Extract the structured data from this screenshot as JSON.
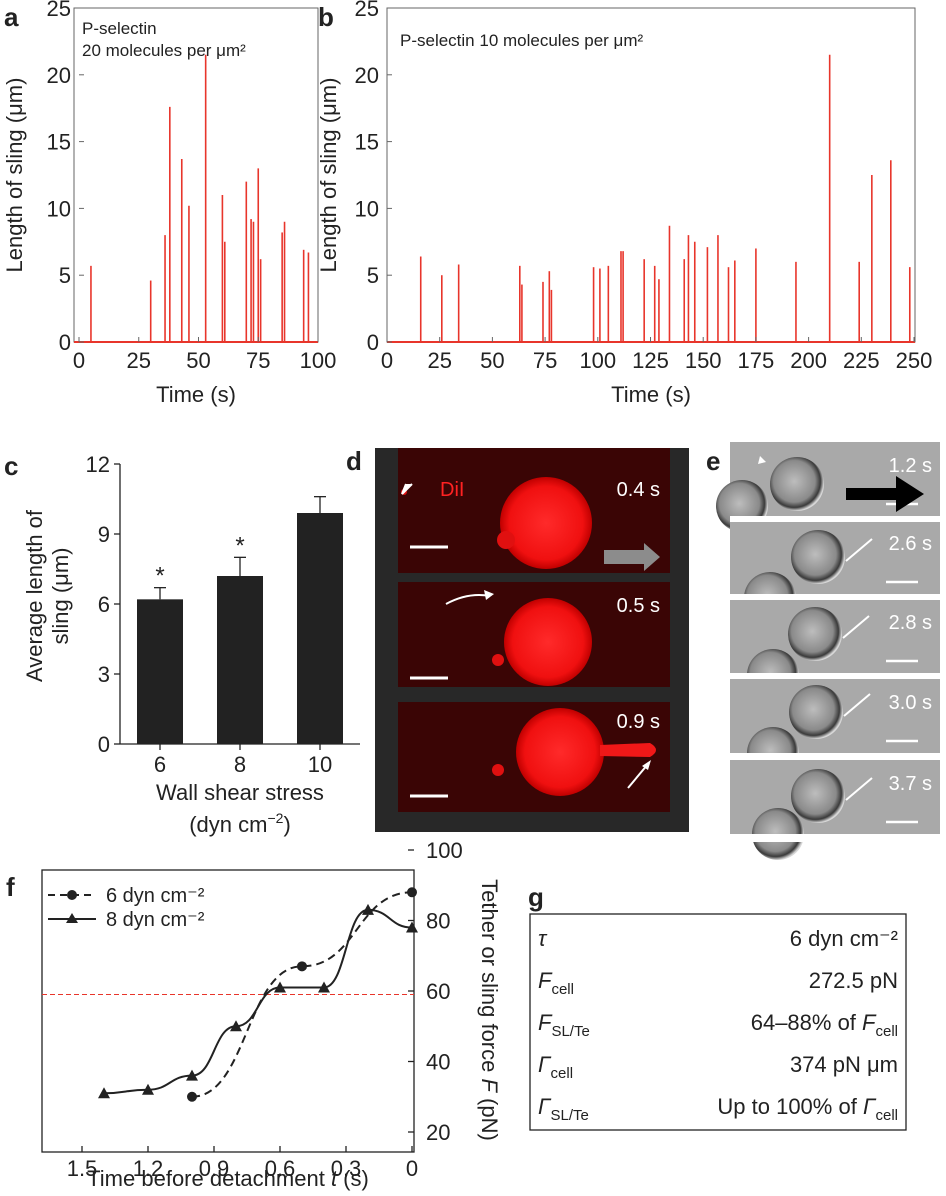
{
  "panels": {
    "a": {
      "letter": "a",
      "annotation_line1": "P-selectin",
      "annotation_line2": "20 molecules per μm²"
    },
    "b": {
      "letter": "b",
      "annotation": "P-selectin 10 molecules per μm²"
    },
    "c": {
      "letter": "c"
    },
    "d": {
      "letter": "d",
      "label": "DiI",
      "times": [
        "0.4 s",
        "0.5 s",
        "0.9 s"
      ]
    },
    "e": {
      "letter": "e",
      "times": [
        "1.2 s",
        "2.6 s",
        "2.8 s",
        "3.0 s",
        "3.7 s"
      ]
    },
    "f": {
      "letter": "f"
    },
    "g": {
      "letter": "g"
    }
  },
  "chart_data": [
    {
      "id": "a",
      "type": "bar",
      "xlabel": "Time (s)",
      "ylabel": "Length of sling (μm)",
      "xlim": [
        0,
        100
      ],
      "ylim": [
        0,
        25
      ],
      "xticks": [
        0,
        25,
        50,
        75,
        100
      ],
      "yticks": [
        0,
        5,
        10,
        15,
        20,
        25
      ],
      "color": "#e8352b",
      "x": [
        5,
        30,
        36,
        38,
        43,
        46,
        53,
        60,
        61,
        70,
        72,
        73,
        75,
        76,
        85,
        86,
        94,
        96
      ],
      "values": [
        5.7,
        4.6,
        8.0,
        17.6,
        13.7,
        10.2,
        21.5,
        11.0,
        7.5,
        12.0,
        9.2,
        9.0,
        13.0,
        6.2,
        8.2,
        9.0,
        6.9,
        6.7
      ]
    },
    {
      "id": "b",
      "type": "bar",
      "xlabel": "Time (s)",
      "ylabel": "Length of sling (μm)",
      "xlim": [
        0,
        250
      ],
      "ylim": [
        0,
        25
      ],
      "xticks": [
        0,
        25,
        50,
        75,
        100,
        125,
        150,
        175,
        200,
        225,
        250
      ],
      "yticks": [
        0,
        5,
        10,
        15,
        20,
        25
      ],
      "color": "#e8352b",
      "x": [
        16,
        26,
        34,
        63,
        64,
        74,
        77,
        78,
        98,
        101,
        105,
        111,
        112,
        122,
        127,
        129,
        134,
        141,
        143,
        146,
        152,
        157,
        162,
        165,
        175,
        194,
        210,
        224,
        230,
        239,
        248
      ],
      "values": [
        6.4,
        5.0,
        5.8,
        5.7,
        4.3,
        4.5,
        5.3,
        3.9,
        5.6,
        5.5,
        5.7,
        6.8,
        6.8,
        6.2,
        5.7,
        4.7,
        8.7,
        6.2,
        8.0,
        7.5,
        7.1,
        8.0,
        5.6,
        6.1,
        7.0,
        6.0,
        21.5,
        6.0,
        12.5,
        13.6,
        5.6
      ]
    },
    {
      "id": "c",
      "type": "bar",
      "categories": [
        "6",
        "8",
        "10"
      ],
      "values": [
        6.2,
        7.2,
        9.9
      ],
      "errors": [
        0.5,
        0.8,
        0.7
      ],
      "significance": [
        "*",
        "*",
        ""
      ],
      "ylabel_line1": "Average length of",
      "ylabel_line2": "sling (μm)",
      "xlabel_line1": "Wall shear stress",
      "xlabel_line2": "(dyn cm⁻²)",
      "ylim": [
        0,
        12
      ],
      "yticks": [
        0,
        3,
        6,
        9,
        12
      ]
    },
    {
      "id": "f",
      "type": "line",
      "xlabel": "Time before detachment t (s)",
      "ylabel": "Tether or sling force F (pN)",
      "xlim": [
        1.5,
        0
      ],
      "ylim": [
        20,
        100
      ],
      "xticks": [
        "1.5",
        "1.2",
        "0.9",
        "0.6",
        "0.3",
        "0"
      ],
      "yticks": [
        20,
        40,
        60,
        80,
        100
      ],
      "reference_line": 59,
      "series": [
        {
          "name": "6 dyn cm⁻²",
          "marker": "circle",
          "dash": true,
          "x": [
            1.0,
            0.5,
            0.0
          ],
          "y": [
            30,
            67,
            88
          ]
        },
        {
          "name": "8 dyn cm⁻²",
          "marker": "triangle",
          "dash": false,
          "x": [
            1.4,
            1.2,
            1.0,
            0.8,
            0.6,
            0.4,
            0.2,
            0.0
          ],
          "y": [
            31,
            32,
            36,
            50,
            61,
            61,
            83,
            78
          ]
        }
      ]
    }
  ],
  "table_g": {
    "rows": [
      {
        "sym": "τ",
        "sub": "",
        "value": "6 dyn cm⁻²"
      },
      {
        "sym": "F",
        "sub": "cell",
        "value": "272.5 pN"
      },
      {
        "sym": "F",
        "sub": "SL/Te",
        "value": "64–88% of  F",
        "value_sub": "cell"
      },
      {
        "sym": "Γ",
        "sub": "cell",
        "value": "374 pN μm"
      },
      {
        "sym": "Γ",
        "sub": "SL/Te",
        "value": "Up to 100% of  Γ",
        "value_sub": "cell"
      }
    ]
  }
}
